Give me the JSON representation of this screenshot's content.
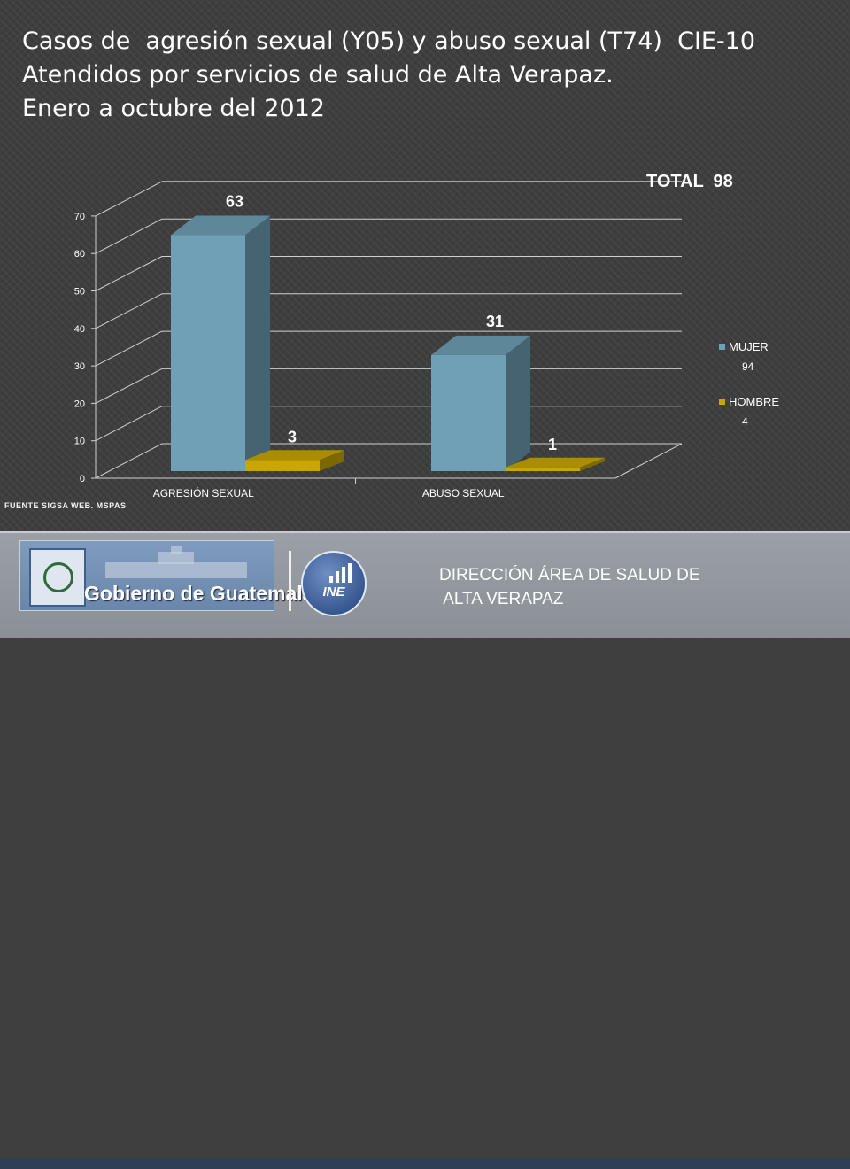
{
  "title": {
    "line1": "Casos de  agresión sexual (Y05) y abuso sexual (T74)  CIE-10",
    "line2": "Atendidos por servicios de salud de Alta Verapaz.",
    "line3": "Enero a octubre del 2012"
  },
  "total_label": "TOTAL  98",
  "source": "FUENTE SIGSA WEB. MSPAS",
  "footer": {
    "gov_text": "Gobierno de Guatemala",
    "ine_text": "INE",
    "direccion_line1": "DIRECCIÓN ÁREA DE SALUD DE",
    "direccion_line2": " ALTA VERAPAZ"
  },
  "colors": {
    "mujer": "#6fa0b5",
    "hombre": "#c9a700",
    "axis_text": "#ffffff",
    "grid": "#cfcfcf"
  },
  "chart_data": {
    "type": "bar",
    "categories": [
      "AGRESIÓN SEXUAL",
      "ABUSO SEXUAL"
    ],
    "series": [
      {
        "name": "MUJER",
        "legend_value": "94",
        "values": [
          63,
          31
        ]
      },
      {
        "name": "HOMBRE",
        "legend_value": "4",
        "values": [
          3,
          1
        ]
      }
    ],
    "data_labels": [
      [
        "63",
        "31"
      ],
      [
        "3",
        "1"
      ]
    ],
    "ylim": [
      0,
      70
    ],
    "yticks": [
      "0",
      "10",
      "20",
      "30",
      "40",
      "50",
      "60",
      "70"
    ],
    "grid": true,
    "legend_position": "right",
    "style": "3d-column"
  }
}
